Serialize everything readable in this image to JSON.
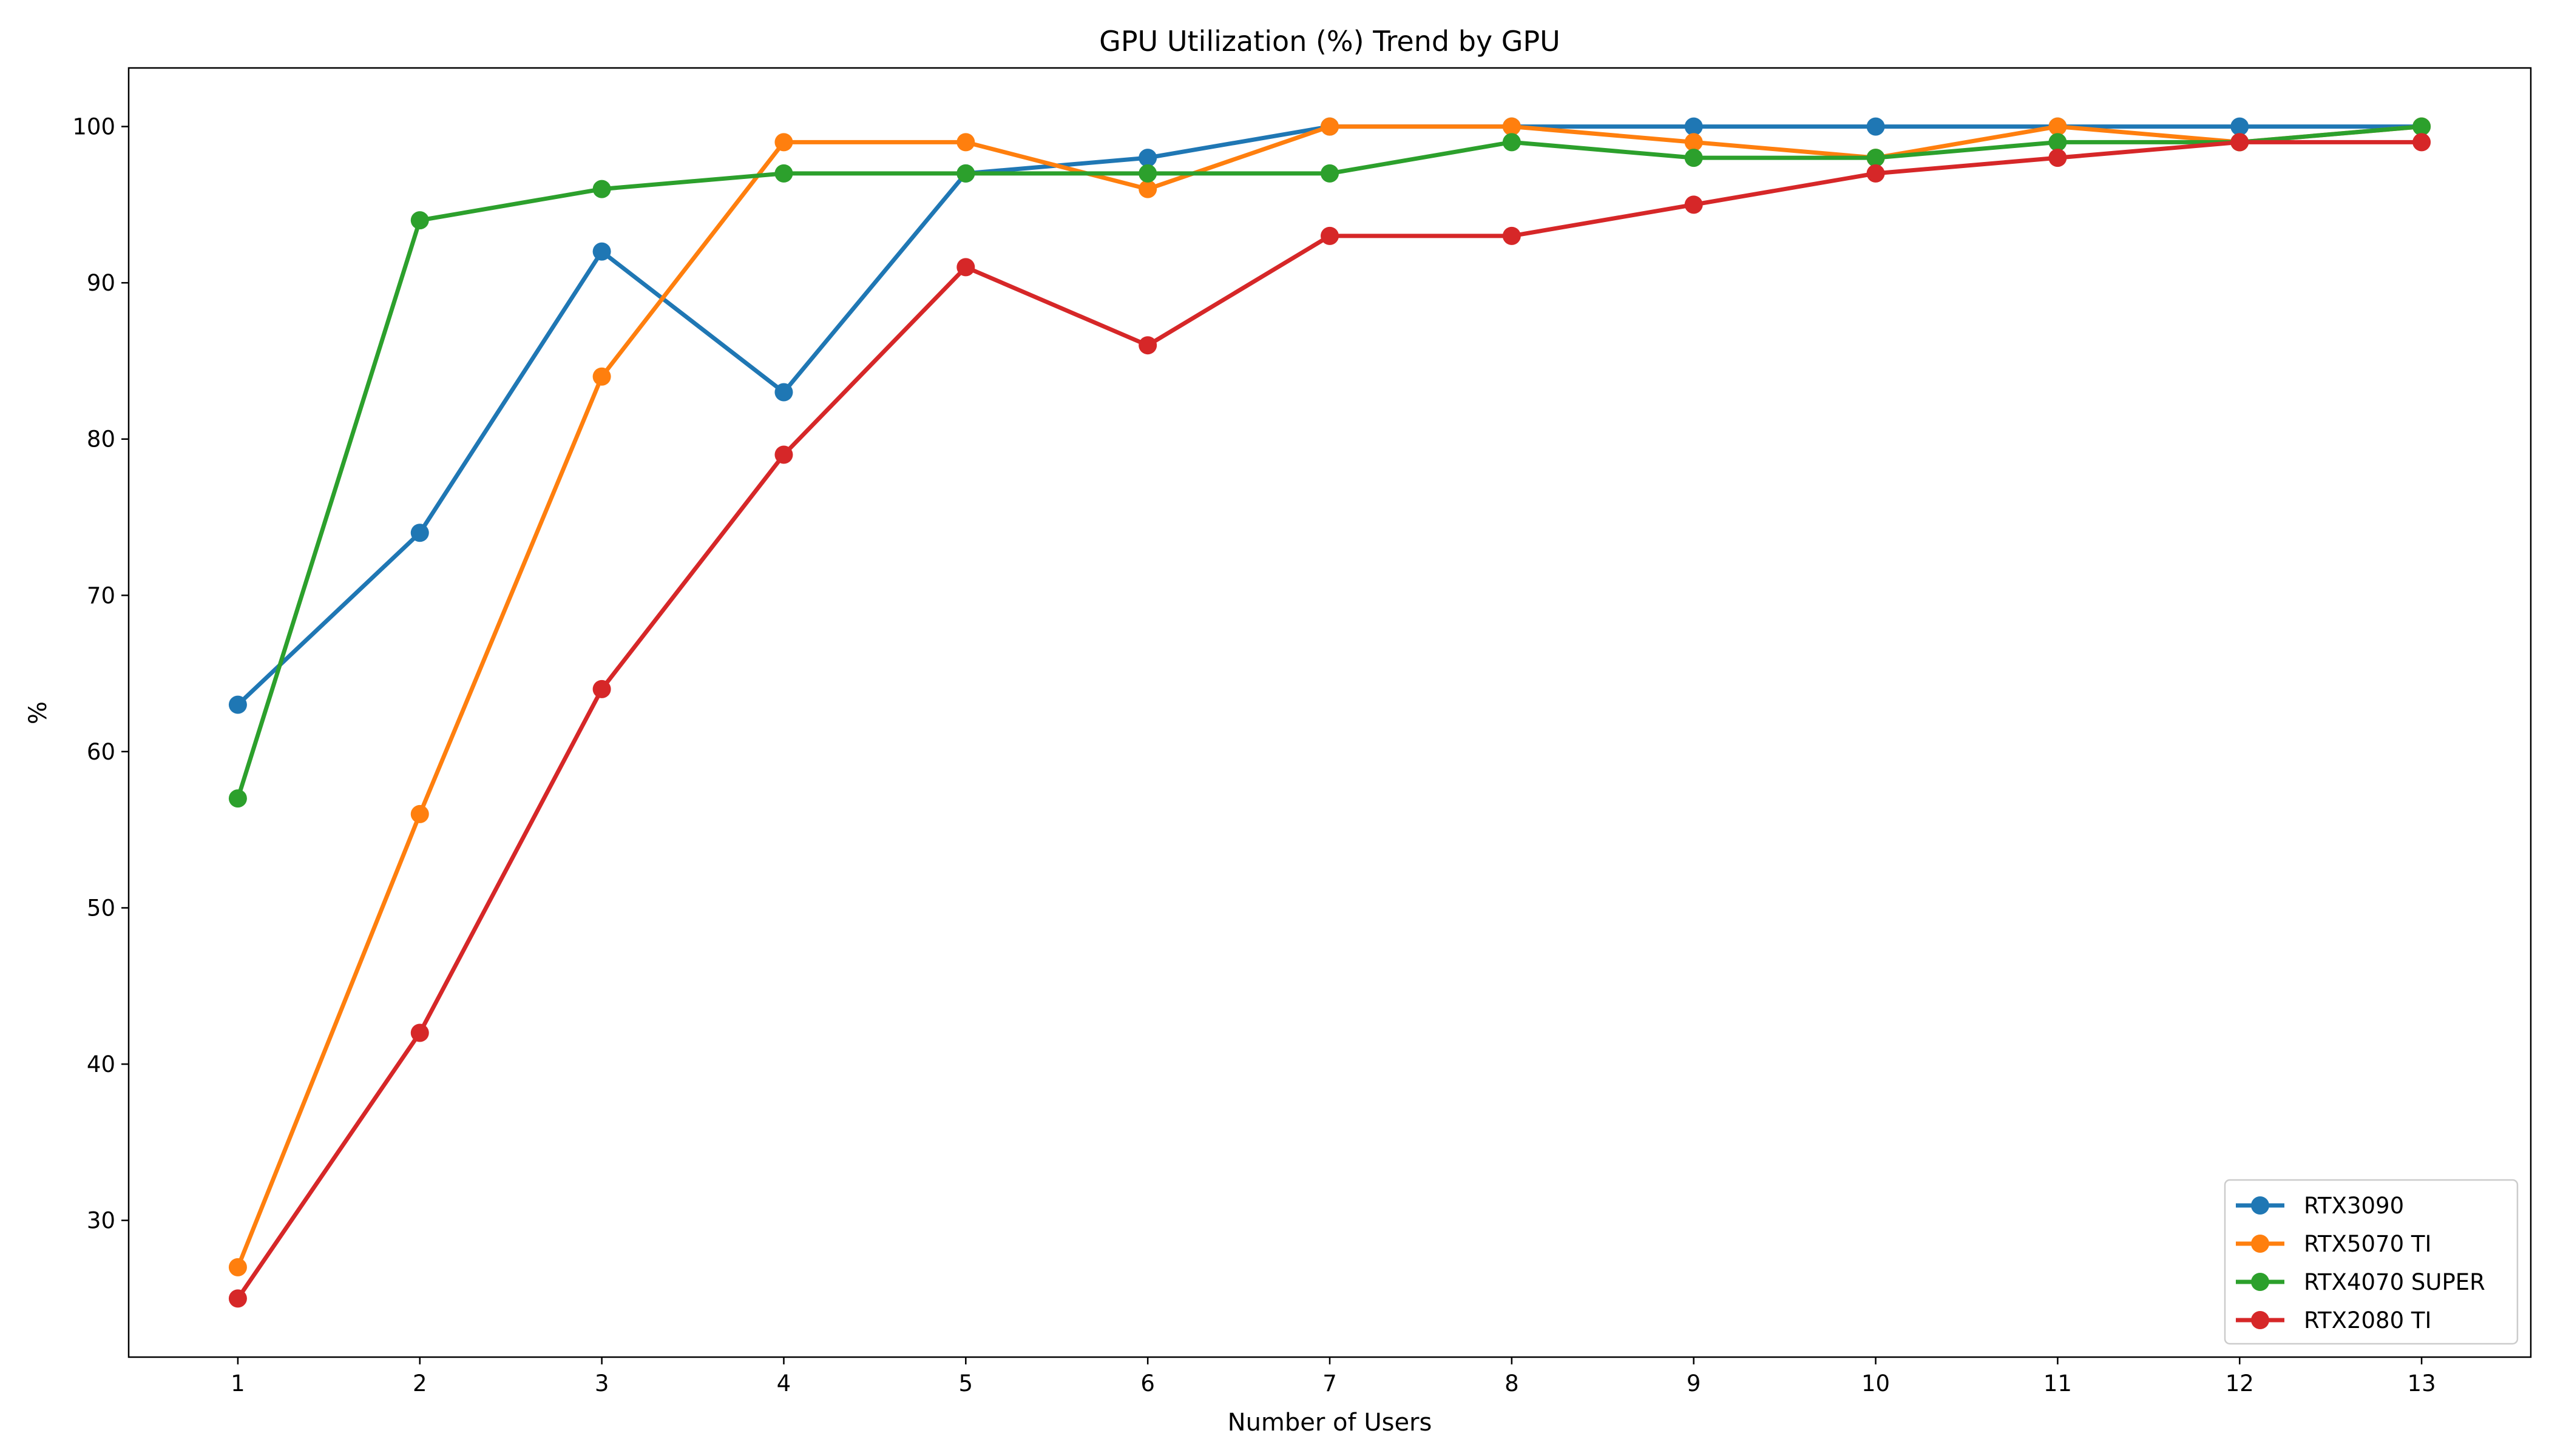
{
  "chart_data": {
    "type": "line",
    "title": "GPU Utilization (%) Trend by GPU",
    "xlabel": "Number of Users",
    "ylabel": "%",
    "x": [
      1,
      2,
      3,
      4,
      5,
      6,
      7,
      8,
      9,
      10,
      11,
      12,
      13
    ],
    "xticks": [
      "1",
      "2",
      "3",
      "4",
      "5",
      "6",
      "7",
      "8",
      "9",
      "10",
      "11",
      "12",
      "13"
    ],
    "yticks": [
      "30",
      "40",
      "50",
      "60",
      "70",
      "80",
      "90",
      "100"
    ],
    "xlim": [
      0.4,
      13.6
    ],
    "ylim": [
      21.25,
      103.75
    ],
    "grid": false,
    "legend_position": "lower right",
    "series": [
      {
        "name": "RTX3090",
        "color": "#1f77b4",
        "values": [
          63,
          74,
          92,
          83,
          97,
          98,
          100,
          100,
          100,
          100,
          100,
          100,
          100
        ]
      },
      {
        "name": "RTX5070 TI",
        "color": "#ff7f0e",
        "values": [
          27,
          56,
          84,
          99,
          99,
          96,
          100,
          100,
          99,
          98,
          100,
          99,
          100
        ]
      },
      {
        "name": "RTX4070 SUPER",
        "color": "#2ca02c",
        "values": [
          57,
          94,
          96,
          97,
          97,
          97,
          97,
          99,
          98,
          98,
          99,
          99,
          100
        ]
      },
      {
        "name": "RTX2080 TI",
        "color": "#d62728",
        "values": [
          25,
          42,
          64,
          79,
          91,
          86,
          93,
          93,
          95,
          97,
          98,
          99,
          99
        ]
      }
    ]
  }
}
